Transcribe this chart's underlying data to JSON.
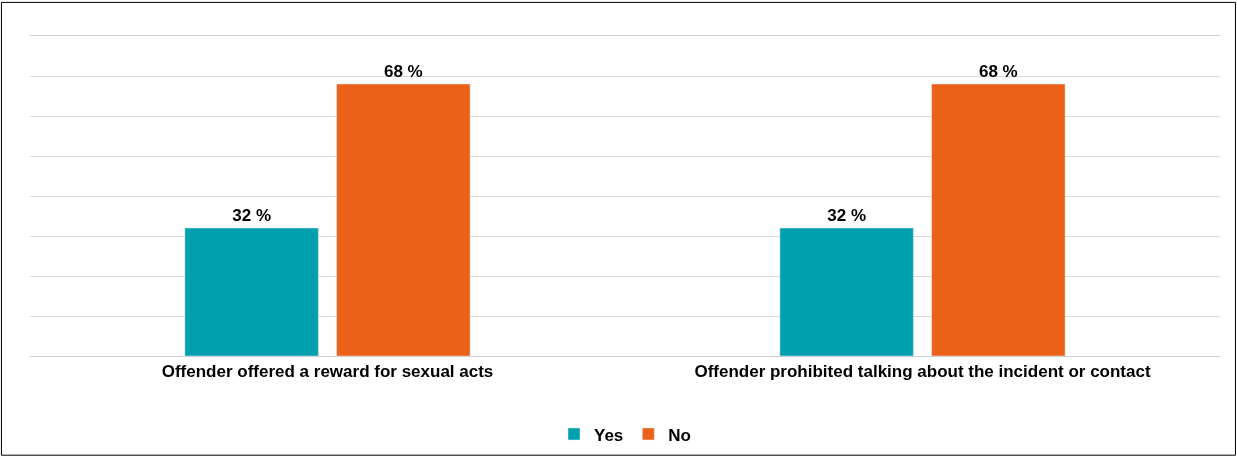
{
  "chart_data": {
    "type": "bar",
    "categories": [
      "Offender offered a reward for sexual acts",
      "Offender prohibited talking about the incident or contact"
    ],
    "series": [
      {
        "name": "Yes",
        "color": "#00a0ae",
        "values": [
          32,
          32
        ],
        "value_labels": [
          "32 %",
          "32 %"
        ]
      },
      {
        "name": "No",
        "color": "#ec6118",
        "values": [
          68,
          68
        ],
        "value_labels": [
          "68 %",
          "68 %"
        ]
      }
    ],
    "ylim": [
      0,
      80
    ],
    "yticks": [
      {
        "value": 0,
        "label": null
      },
      {
        "value": 10,
        "label": null
      },
      {
        "value": 20,
        "label": null
      },
      {
        "value": 30,
        "label": null
      },
      {
        "value": 40,
        "label": null
      },
      {
        "value": 50,
        "label": null
      },
      {
        "value": 60,
        "label": null
      },
      {
        "value": 70,
        "label": null
      },
      {
        "value": 80,
        "label": null
      }
    ],
    "tick_labels": "x",
    "grid": "y",
    "legend": "bottom"
  }
}
